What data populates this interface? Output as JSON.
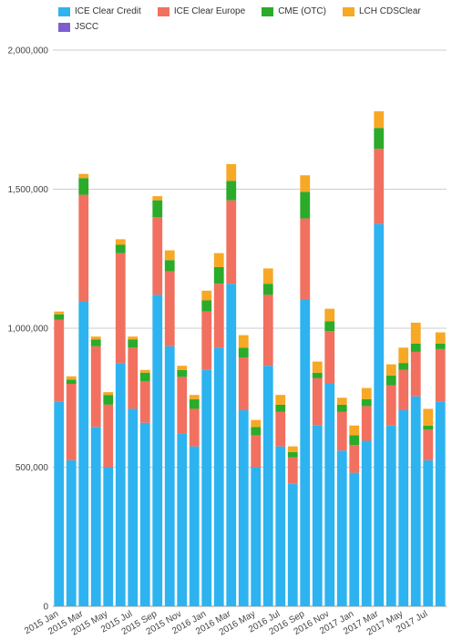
{
  "chart_data": {
    "type": "bar",
    "stacked": true,
    "title": "",
    "xlabel": "",
    "ylabel": "",
    "ylim": [
      0,
      2000000
    ],
    "yticks": [
      0,
      500000,
      1000000,
      1500000,
      2000000
    ],
    "ytick_labels": [
      "0",
      "500,000",
      "1,000,000",
      "1,500,000",
      "2,000,000"
    ],
    "grid": true,
    "legend": "top-left",
    "categories": [
      "2015 Jan",
      "2015 Feb",
      "2015 Mar",
      "2015 Apr",
      "2015 May",
      "2015 Jun",
      "2015 Jul",
      "2015 Aug",
      "2015 Sep",
      "2015 Oct",
      "2015 Nov",
      "2015 Dec",
      "2016 Jan",
      "2016 Feb",
      "2016 Mar",
      "2016 Apr",
      "2016 May",
      "2016 Jun",
      "2016 Jul",
      "2016 Aug",
      "2016 Sep",
      "2016 Oct",
      "2016 Nov",
      "2016 Dec",
      "2017 Jan",
      "2017 Feb",
      "2017 Mar",
      "2017 Apr",
      "2017 May",
      "2017 Jun",
      "2017 Jul",
      "2017 Aug"
    ],
    "xtick_labels": [
      {
        "index": 0,
        "label": "2015 Jan"
      },
      {
        "index": 2,
        "label": "2015 Mar"
      },
      {
        "index": 4,
        "label": "2015 May"
      },
      {
        "index": 6,
        "label": "2015 Jul"
      },
      {
        "index": 8,
        "label": "2015 Sep"
      },
      {
        "index": 10,
        "label": "2015 Nov"
      },
      {
        "index": 12,
        "label": "2016 Jan"
      },
      {
        "index": 14,
        "label": "2016 Mar"
      },
      {
        "index": 16,
        "label": "2016 May"
      },
      {
        "index": 18,
        "label": "2016 Jul"
      },
      {
        "index": 20,
        "label": "2016 Sep"
      },
      {
        "index": 22,
        "label": "2016 Nov"
      },
      {
        "index": 24,
        "label": "2017 Jan"
      },
      {
        "index": 26,
        "label": "2017 Mar"
      },
      {
        "index": 28,
        "label": "2017 May"
      },
      {
        "index": 30,
        "label": "2017 Jul"
      }
    ],
    "series": [
      {
        "name": "ICE Clear Credit",
        "color": "#2db3f0",
        "values": [
          735000,
          525000,
          1095000,
          645000,
          500000,
          875000,
          710000,
          660000,
          1120000,
          935000,
          620000,
          575000,
          850000,
          930000,
          1160000,
          705000,
          500000,
          865000,
          575000,
          440000,
          1105000,
          650000,
          800000,
          560000,
          480000,
          595000,
          1375000,
          650000,
          705000,
          755000,
          525000,
          735000
        ]
      },
      {
        "name": "ICE Clear Europe",
        "color": "#f2705f",
        "values": [
          295000,
          275000,
          385000,
          290000,
          225000,
          395000,
          220000,
          150000,
          280000,
          270000,
          205000,
          135000,
          210000,
          230000,
          300000,
          190000,
          115000,
          255000,
          125000,
          95000,
          290000,
          170000,
          190000,
          140000,
          100000,
          125000,
          270000,
          145000,
          145000,
          160000,
          110000,
          190000
        ]
      },
      {
        "name": "CME (OTC)",
        "color": "#2aab2a",
        "values": [
          20000,
          15000,
          60000,
          25000,
          35000,
          30000,
          30000,
          30000,
          60000,
          40000,
          25000,
          35000,
          40000,
          60000,
          70000,
          35000,
          30000,
          40000,
          25000,
          20000,
          95000,
          20000,
          35000,
          25000,
          35000,
          25000,
          75000,
          35000,
          25000,
          30000,
          15000,
          20000
        ]
      },
      {
        "name": "LCH CDSClear",
        "color": "#f7a825",
        "values": [
          10000,
          12000,
          15000,
          10000,
          10000,
          20000,
          10000,
          10000,
          15000,
          35000,
          15000,
          15000,
          35000,
          50000,
          60000,
          45000,
          25000,
          55000,
          35000,
          20000,
          60000,
          40000,
          45000,
          25000,
          35000,
          40000,
          60000,
          40000,
          55000,
          75000,
          60000,
          40000
        ]
      },
      {
        "name": "JSCC",
        "color": "#7b5fcf",
        "values": [
          0,
          0,
          0,
          0,
          0,
          0,
          0,
          0,
          0,
          0,
          0,
          0,
          0,
          0,
          0,
          0,
          0,
          0,
          0,
          0,
          0,
          0,
          0,
          0,
          0,
          0,
          0,
          0,
          0,
          0,
          0,
          0
        ]
      }
    ]
  }
}
